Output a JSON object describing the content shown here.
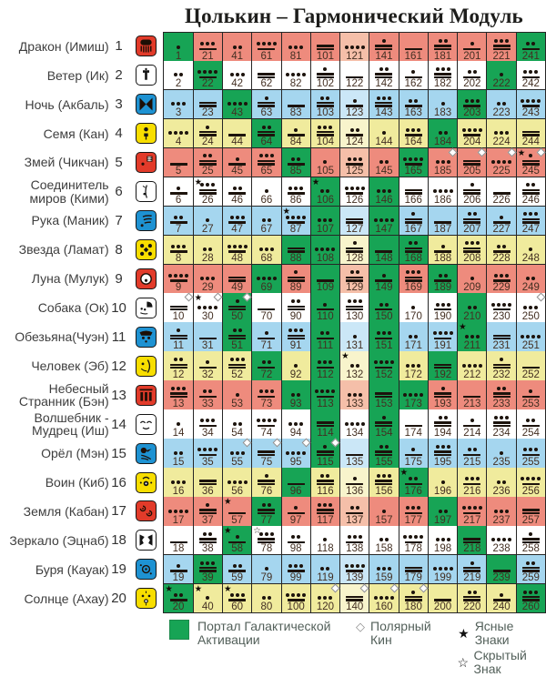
{
  "title": "Цолькин – Гармонический Модуль",
  "legend": {
    "portal_label": "Портал Галактической Активации",
    "polar_label": "Полярный Кин",
    "clear_label": "Ясные Знаки",
    "hidden_label": "Скрытый Знак",
    "polar_symbol": "◇",
    "clear_symbol": "★",
    "hidden_symbol": "☆"
  },
  "colors": {
    "gap_green": "#17A455",
    "red_cell": "#EE8B7D",
    "red_cell_light": "#F5BFA9",
    "blue_cell": "#A5D6EF",
    "blue_cell_light": "#CBE7F7",
    "yellow_cell": "#F0EB9D",
    "yellow_cell_light": "#F8F4CC",
    "white_cell": "#FFFFFF",
    "icon_red": "#E23B2A",
    "icon_blue": "#1E92D2",
    "icon_yellow": "#F8DE00",
    "icon_white": "#FFFFFF"
  },
  "chart_data": {
    "type": "table",
    "title": "Цолькин – Гармонический Модуль",
    "columns": 13,
    "light_column_index": 7,
    "tone_rule": "tone = ((kin-1) mod 13) + 1; glyph = (tone mod 5) dots above floor(tone/5) bars",
    "rows": [
      {
        "num": 1,
        "label": "Дракон (Имиш)",
        "color": "red",
        "icon": "dragon-icon",
        "kins": [
          1,
          21,
          41,
          61,
          81,
          101,
          121,
          141,
          161,
          181,
          201,
          221,
          241
        ]
      },
      {
        "num": 2,
        "label": "Ветер (Ик)",
        "color": "white",
        "icon": "wind-icon",
        "kins": [
          2,
          22,
          42,
          62,
          82,
          102,
          122,
          142,
          162,
          182,
          202,
          222,
          242
        ]
      },
      {
        "num": 3,
        "label": "Ночь (Акбаль)",
        "color": "blue",
        "icon": "night-icon",
        "kins": [
          3,
          23,
          43,
          63,
          83,
          103,
          123,
          143,
          163,
          183,
          203,
          223,
          243
        ]
      },
      {
        "num": 4,
        "label": "Семя (Кан)",
        "color": "yellow",
        "icon": "seed-icon",
        "kins": [
          4,
          24,
          44,
          64,
          84,
          104,
          124,
          144,
          164,
          184,
          204,
          224,
          244
        ]
      },
      {
        "num": 5,
        "label": "Змей (Чикчан)",
        "color": "red",
        "icon": "serpent-icon",
        "kins": [
          5,
          25,
          45,
          65,
          85,
          105,
          125,
          145,
          165,
          185,
          205,
          225,
          245
        ]
      },
      {
        "num": 6,
        "label": "Соединитель миров (Кими)",
        "color": "white",
        "icon": "worldbridger-icon",
        "kins": [
          6,
          26,
          46,
          66,
          86,
          106,
          126,
          146,
          166,
          186,
          206,
          226,
          246
        ]
      },
      {
        "num": 7,
        "label": "Рука (Маник)",
        "color": "blue",
        "icon": "hand-icon",
        "kins": [
          7,
          27,
          47,
          67,
          87,
          107,
          127,
          147,
          167,
          187,
          207,
          227,
          247
        ]
      },
      {
        "num": 8,
        "label": "Звезда (Ламат)",
        "color": "yellow",
        "icon": "star-icon",
        "kins": [
          8,
          28,
          48,
          68,
          88,
          108,
          128,
          148,
          168,
          188,
          208,
          228,
          248
        ]
      },
      {
        "num": 9,
        "label": "Луна (Мулук)",
        "color": "red",
        "icon": "moon-icon",
        "kins": [
          9,
          29,
          49,
          69,
          89,
          109,
          129,
          149,
          169,
          189,
          209,
          229,
          249
        ]
      },
      {
        "num": 10,
        "label": "Собака (Ок)",
        "color": "white",
        "icon": "dog-icon",
        "kins": [
          10,
          30,
          50,
          70,
          90,
          110,
          130,
          150,
          170,
          190,
          210,
          230,
          250
        ]
      },
      {
        "num": 11,
        "label": "Обезьяна(Чуэн)",
        "color": "blue",
        "icon": "monkey-icon",
        "kins": [
          11,
          31,
          51,
          71,
          91,
          111,
          131,
          151,
          171,
          191,
          211,
          231,
          251
        ]
      },
      {
        "num": 12,
        "label": "Человек (Эб)",
        "color": "yellow",
        "icon": "human-icon",
        "kins": [
          12,
          32,
          52,
          72,
          92,
          112,
          132,
          152,
          172,
          192,
          212,
          232,
          252
        ]
      },
      {
        "num": 13,
        "label": "Небесный Странник (Бэн)",
        "color": "red",
        "icon": "skywalker-icon",
        "kins": [
          13,
          33,
          53,
          73,
          93,
          113,
          133,
          153,
          173,
          193,
          213,
          233,
          253
        ]
      },
      {
        "num": 14,
        "label": "Волшебник - Мудрец (Иш)",
        "color": "white",
        "icon": "wizard-icon",
        "kins": [
          14,
          34,
          54,
          74,
          94,
          114,
          134,
          154,
          174,
          194,
          214,
          234,
          254
        ]
      },
      {
        "num": 15,
        "label": "Орёл (Мэн)",
        "color": "blue",
        "icon": "eagle-icon",
        "kins": [
          15,
          35,
          55,
          75,
          95,
          115,
          135,
          155,
          175,
          195,
          215,
          235,
          255
        ]
      },
      {
        "num": 16,
        "label": "Воин (Киб)",
        "color": "yellow",
        "icon": "warrior-icon",
        "kins": [
          16,
          36,
          56,
          76,
          96,
          116,
          136,
          156,
          176,
          196,
          216,
          236,
          256
        ]
      },
      {
        "num": 17,
        "label": "Земля (Кабан)",
        "color": "red",
        "icon": "earth-icon",
        "kins": [
          17,
          37,
          57,
          77,
          97,
          117,
          137,
          157,
          177,
          197,
          217,
          237,
          257
        ]
      },
      {
        "num": 18,
        "label": "Зеркало (Эцнаб)",
        "color": "white",
        "icon": "mirror-icon",
        "kins": [
          18,
          38,
          58,
          78,
          98,
          118,
          138,
          158,
          178,
          198,
          218,
          238,
          258
        ]
      },
      {
        "num": 19,
        "label": "Буря (Кауак)",
        "color": "blue",
        "icon": "storm-icon",
        "kins": [
          19,
          39,
          59,
          79,
          99,
          119,
          139,
          159,
          179,
          199,
          219,
          239,
          259
        ]
      },
      {
        "num": 20,
        "label": "Солнце (Ахау)",
        "color": "yellow",
        "icon": "sun-icon",
        "kins": [
          20,
          40,
          60,
          80,
          100,
          120,
          140,
          160,
          180,
          200,
          220,
          240,
          260
        ]
      }
    ],
    "gap_kins": [
      1,
      20,
      22,
      39,
      43,
      50,
      51,
      58,
      64,
      69,
      72,
      77,
      85,
      88,
      93,
      96,
      106,
      107,
      108,
      109,
      110,
      111,
      112,
      113,
      114,
      115,
      146,
      147,
      148,
      149,
      150,
      151,
      152,
      153,
      154,
      155,
      165,
      168,
      173,
      176,
      184,
      189,
      192,
      197,
      203,
      210,
      211,
      218,
      222,
      239,
      241,
      260
    ],
    "clear_sign_kins": [
      20,
      26,
      30,
      40,
      57,
      58,
      60,
      87,
      106,
      132,
      176,
      211,
      245
    ],
    "hidden_sign_kins": [
      78
    ],
    "polar_kins": [
      10,
      30,
      50,
      55,
      75,
      95,
      115,
      120,
      140,
      160,
      180,
      185,
      205,
      225,
      245,
      250
    ]
  }
}
